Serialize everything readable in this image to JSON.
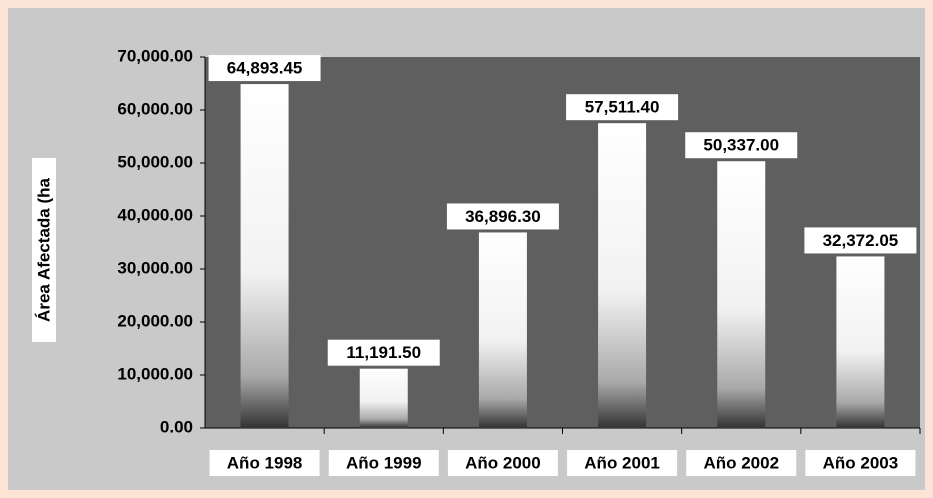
{
  "chart_data": {
    "type": "bar",
    "y_axis_label": "Área Afectada (ha",
    "categories": [
      "Año 1998",
      "Año 1999",
      "Año 2000",
      "Año 2001",
      "Año 2002",
      "Año 2003"
    ],
    "values": [
      64893.45,
      11191.5,
      36896.3,
      57511.4,
      50337.0,
      32372.05
    ],
    "value_labels": [
      "64,893.45",
      "11,191.50",
      "36,896.30",
      "57,511.40",
      "50,337.00",
      "32,372.05"
    ],
    "color": "#ffffff",
    "ylim": [
      0,
      70000
    ],
    "yticks": [
      {
        "value": 0,
        "label": "0.00"
      },
      {
        "value": 10000,
        "label": "10,000.00"
      },
      {
        "value": 20000,
        "label": "20,000.00"
      },
      {
        "value": 30000,
        "label": "30,000.00"
      },
      {
        "value": 40000,
        "label": "40,000.00"
      },
      {
        "value": 50000,
        "label": "50,000.00"
      },
      {
        "value": 60000,
        "label": "60,000.00"
      },
      {
        "value": 70000,
        "label": "70,000.00"
      }
    ]
  }
}
